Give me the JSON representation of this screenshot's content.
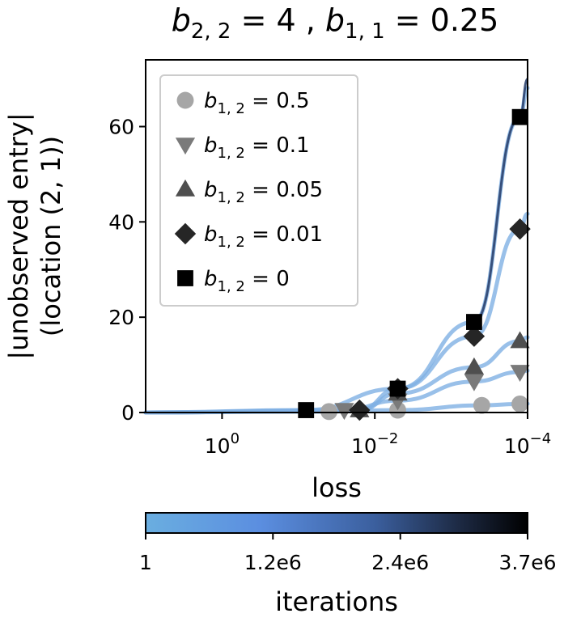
{
  "chart_data": {
    "type": "line",
    "title": "b_{2,2}=4 , b_{1,1}=0.25",
    "title_parts": [
      "b",
      "2, 2",
      " = 4 , ",
      "b",
      "1, 1",
      " = 0.25"
    ],
    "xlabel": "loss",
    "ylabel_line1": "|unobserved entry|",
    "ylabel_line2": "(location (2, 1))",
    "x_scale": "log-reversed",
    "xlim_log10": [
      1.0,
      -4.0
    ],
    "ylim": [
      0,
      74
    ],
    "x_ticks": [
      {
        "log10": 0,
        "base": "10",
        "exp": "0"
      },
      {
        "log10": -2,
        "base": "10",
        "exp": "−2"
      },
      {
        "log10": -4,
        "base": "10",
        "exp": "−4"
      }
    ],
    "y_ticks": [
      0,
      20,
      40,
      60
    ],
    "series": [
      {
        "name": "b_{1,2}=0.5",
        "legend_value": "0.5",
        "marker": "circle",
        "color": "#a6a6a6",
        "points": [
          {
            "log10_loss": -1.4,
            "value": 0.2
          },
          {
            "log10_loss": -2.3,
            "value": 0.5
          },
          {
            "log10_loss": -3.4,
            "value": 1.5
          },
          {
            "log10_loss": -3.9,
            "value": 1.8
          }
        ]
      },
      {
        "name": "b_{1,2}=0.1",
        "legend_value": "0.1",
        "marker": "triangle-down",
        "color": "#7a7a7a",
        "points": [
          {
            "log10_loss": -1.6,
            "value": 0.5
          },
          {
            "log10_loss": -2.3,
            "value": 2.5
          },
          {
            "log10_loss": -3.3,
            "value": 6.5
          },
          {
            "log10_loss": -3.9,
            "value": 8.5
          }
        ]
      },
      {
        "name": "b_{1,2}=0.05",
        "legend_value": "0.05",
        "marker": "triangle-up",
        "color": "#4f4f4f",
        "points": [
          {
            "log10_loss": -1.8,
            "value": 0.5
          },
          {
            "log10_loss": -2.3,
            "value": 4.0
          },
          {
            "log10_loss": -3.3,
            "value": 9.5
          },
          {
            "log10_loss": -3.9,
            "value": 15.0
          }
        ]
      },
      {
        "name": "b_{1,2}=0.01",
        "legend_value": "0.01",
        "marker": "diamond",
        "color": "#262626",
        "points": [
          {
            "log10_loss": -1.8,
            "value": 0.5
          },
          {
            "log10_loss": -2.3,
            "value": 5.0
          },
          {
            "log10_loss": -3.3,
            "value": 16.0
          },
          {
            "log10_loss": -3.9,
            "value": 38.5
          }
        ]
      },
      {
        "name": "b_{1,2}=0",
        "legend_value": "0",
        "marker": "square",
        "color": "#000000",
        "points": [
          {
            "log10_loss": -1.1,
            "value": 0.5
          },
          {
            "log10_loss": -2.3,
            "value": 5.0
          },
          {
            "log10_loss": -3.3,
            "value": 19.0
          },
          {
            "log10_loss": -3.9,
            "value": 62.0
          }
        ]
      }
    ],
    "legend_label_prefix": "b",
    "legend_label_sub": "1, 2",
    "legend_label_eq": " = ",
    "legend_location": "upper-left",
    "colorbar": {
      "label": "iterations",
      "ticks": [
        "1",
        "1.2e6",
        "2.4e6",
        "3.7e6"
      ],
      "colors": [
        "#6aaee0",
        "#5b8ee0",
        "#3b5f9e",
        "#1d2a44",
        "#000000"
      ]
    }
  }
}
